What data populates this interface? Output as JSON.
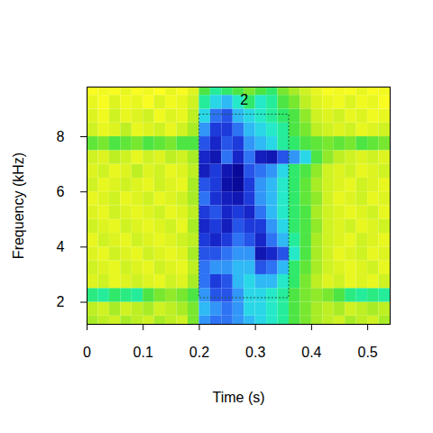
{
  "chart_data": {
    "type": "heatmap",
    "x_label": "Time (s)",
    "y_label": "Frequency (kHz)",
    "xlim": [
      0,
      0.54
    ],
    "ylim": [
      1.2,
      9.8
    ],
    "xticks": [
      0,
      0.1,
      0.2,
      0.3,
      0.4,
      0.5
    ],
    "yticks": [
      2,
      4,
      6,
      8
    ],
    "cells": {
      "x": [
        0.01,
        0.03,
        0.05,
        0.07,
        0.09,
        0.11,
        0.13,
        0.15,
        0.17,
        0.19,
        0.21,
        0.23,
        0.25,
        0.27,
        0.29,
        0.31,
        0.33,
        0.35,
        0.37,
        0.39,
        0.41,
        0.43,
        0.45,
        0.47,
        0.49,
        0.51,
        0.53
      ],
      "y": [
        1.25,
        1.75,
        2.25,
        2.75,
        3.25,
        3.75,
        4.25,
        4.75,
        5.25,
        5.75,
        6.25,
        6.75,
        7.25,
        7.75,
        8.25,
        8.75,
        9.25,
        9.75
      ],
      "values": [
        [
          -34,
          -35,
          -36,
          -34,
          -35,
          -36,
          -34,
          -35,
          -36,
          -32,
          -18,
          -16,
          -16,
          -18,
          -20,
          -22,
          -24,
          -26,
          -30,
          -32,
          -34,
          -35,
          -36,
          -34,
          -35,
          -36,
          -34
        ],
        [
          -35,
          -36,
          -34,
          -36,
          -35,
          -34,
          -36,
          -35,
          -34,
          -32,
          -20,
          -18,
          -16,
          -18,
          -22,
          -22,
          -24,
          -26,
          -30,
          -32,
          -34,
          -35,
          -34,
          -36,
          -35,
          -34,
          -35
        ],
        [
          -27,
          -26,
          -28,
          -27,
          -26,
          -30,
          -32,
          -33,
          -32,
          -30,
          -18,
          -14,
          -14,
          -18,
          -22,
          -22,
          -24,
          -26,
          -30,
          -32,
          -33,
          -32,
          -30,
          -27,
          -26,
          -27,
          -26
        ],
        [
          -37,
          -36,
          -38,
          -37,
          -36,
          -37,
          -38,
          -36,
          -37,
          -34,
          -16,
          -12,
          -14,
          -20,
          -22,
          -20,
          -20,
          -24,
          -28,
          -32,
          -35,
          -37,
          -36,
          -38,
          -37,
          -38,
          -36
        ],
        [
          -36,
          -37,
          -38,
          -36,
          -37,
          -38,
          -36,
          -37,
          -38,
          -35,
          -16,
          -18,
          -18,
          -20,
          -20,
          -14,
          -16,
          -20,
          -28,
          -31,
          -34,
          -36,
          -37,
          -38,
          -37,
          -36,
          -38
        ],
        [
          -37,
          -38,
          -36,
          -37,
          -38,
          -36,
          -37,
          -38,
          -37,
          -34,
          -14,
          -14,
          -16,
          -18,
          -18,
          -8,
          -10,
          -14,
          -24,
          -30,
          -34,
          -36,
          -38,
          -37,
          -36,
          -38,
          -37
        ],
        [
          -38,
          -36,
          -37,
          -38,
          -36,
          -37,
          -38,
          -37,
          -36,
          -35,
          -12,
          -10,
          -12,
          -16,
          -14,
          -10,
          -16,
          -20,
          -26,
          -30,
          -34,
          -36,
          -37,
          -38,
          -36,
          -37,
          -38
        ],
        [
          -36,
          -37,
          -38,
          -36,
          -37,
          -38,
          -37,
          -36,
          -38,
          -34,
          -10,
          -12,
          -9,
          -14,
          -12,
          -12,
          -18,
          -22,
          -28,
          -30,
          -33,
          -36,
          -37,
          -36,
          -38,
          -37,
          -36
        ],
        [
          -37,
          -38,
          -36,
          -37,
          -38,
          -37,
          -36,
          -38,
          -37,
          -35,
          -12,
          -14,
          -10,
          -12,
          -10,
          -16,
          -20,
          -24,
          -28,
          -30,
          -34,
          -36,
          -37,
          -38,
          -37,
          -36,
          -38
        ],
        [
          -38,
          -37,
          -36,
          -38,
          -37,
          -36,
          -38,
          -37,
          -36,
          -34,
          -16,
          -11,
          -9,
          -8,
          -12,
          -18,
          -20,
          -24,
          -28,
          -31,
          -33,
          -36,
          -38,
          -37,
          -36,
          -38,
          -37
        ],
        [
          -36,
          -38,
          -37,
          -36,
          -37,
          -38,
          -36,
          -37,
          -38,
          -34,
          -14,
          -12,
          -7,
          -6,
          -12,
          -18,
          -20,
          -24,
          -28,
          -31,
          -34,
          -36,
          -37,
          -38,
          -36,
          -37,
          -38
        ],
        [
          -37,
          -36,
          -38,
          -37,
          -35,
          -37,
          -36,
          -38,
          -37,
          -35,
          -9,
          -12,
          -8,
          -6,
          -14,
          -16,
          -18,
          -22,
          -28,
          -30,
          -33,
          -36,
          -37,
          -36,
          -38,
          -37,
          -36
        ],
        [
          -36,
          -37,
          -35,
          -36,
          -38,
          -36,
          -37,
          -35,
          -36,
          -34,
          -10,
          -8,
          -16,
          -10,
          -16,
          -9,
          -8,
          -14,
          -18,
          -22,
          -30,
          -33,
          -35,
          -36,
          -37,
          -36,
          -37
        ],
        [
          -31,
          -32,
          -30,
          -31,
          -32,
          -30,
          -31,
          -32,
          -30,
          -30,
          -14,
          -10,
          -14,
          -12,
          -18,
          -20,
          -22,
          -26,
          -28,
          -30,
          -31,
          -32,
          -31,
          -32,
          -30,
          -31,
          -32
        ],
        [
          -36,
          -38,
          -37,
          -35,
          -38,
          -37,
          -36,
          -38,
          -36,
          -34,
          -18,
          -12,
          -12,
          -16,
          -20,
          -22,
          -24,
          -26,
          -30,
          -32,
          -35,
          -36,
          -37,
          -36,
          -38,
          -37,
          -36
        ],
        [
          -37,
          -39,
          -36,
          -38,
          -37,
          -36,
          -39,
          -37,
          -38,
          -35,
          -22,
          -16,
          -14,
          -20,
          -22,
          -24,
          -26,
          -28,
          -30,
          -33,
          -36,
          -37,
          -36,
          -38,
          -37,
          -39,
          -38
        ],
        [
          -38,
          -40,
          -37,
          -39,
          -38,
          -40,
          -37,
          -39,
          -38,
          -36,
          -26,
          -22,
          -20,
          -24,
          -28,
          -24,
          -26,
          -30,
          -32,
          -35,
          -37,
          -38,
          -39,
          -37,
          -39,
          -38,
          -40
        ],
        [
          -40,
          -39,
          -40,
          -38,
          -40,
          -39,
          -41,
          -38,
          -40,
          -37,
          -30,
          -26,
          -28,
          -30,
          -32,
          -30,
          -28,
          -32,
          -34,
          -36,
          -38,
          -40,
          -39,
          -40,
          -38,
          -40,
          -39
        ]
      ]
    },
    "annotations": [
      {
        "text": "2",
        "x": [
          0.2,
          0.36
        ],
        "y": [
          2.15,
          8.8
        ]
      }
    ]
  }
}
